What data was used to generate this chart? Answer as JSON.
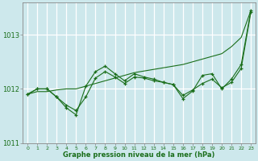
{
  "background_color": "#cde8ec",
  "plot_bg_color": "#cde8ec",
  "grid_color": "#ffffff",
  "line_color": "#1a6e1a",
  "x_values": [
    0,
    1,
    2,
    3,
    4,
    5,
    6,
    7,
    8,
    9,
    10,
    11,
    12,
    13,
    14,
    15,
    16,
    17,
    18,
    19,
    20,
    21,
    22,
    23
  ],
  "x_labels": [
    "0",
    "1",
    "2",
    "3",
    "4",
    "5",
    "6",
    "7",
    "8",
    "9",
    "10",
    "11",
    "12",
    "13",
    "14",
    "15",
    "16",
    "17",
    "18",
    "19",
    "20",
    "21",
    "22",
    "23"
  ],
  "zigzag_y": [
    1011.9,
    1012.0,
    1012.0,
    1011.85,
    1011.65,
    1011.52,
    1012.05,
    1012.32,
    1012.42,
    1012.28,
    1012.15,
    1012.28,
    1012.22,
    1012.18,
    1012.12,
    1012.08,
    1011.82,
    1011.96,
    1012.25,
    1012.28,
    1012.0,
    1012.18,
    1012.45,
    1013.45
  ],
  "smooth_y": [
    1011.9,
    1012.0,
    1012.0,
    1011.85,
    1011.7,
    1011.6,
    1011.85,
    1012.2,
    1012.32,
    1012.22,
    1012.1,
    1012.22,
    1012.2,
    1012.15,
    1012.12,
    1012.08,
    1011.88,
    1011.98,
    1012.1,
    1012.18,
    1012.02,
    1012.12,
    1012.38,
    1013.42
  ],
  "trend_y": [
    1011.9,
    1011.95,
    1011.95,
    1011.98,
    1012.0,
    1012.0,
    1012.05,
    1012.1,
    1012.15,
    1012.2,
    1012.25,
    1012.3,
    1012.33,
    1012.36,
    1012.39,
    1012.42,
    1012.45,
    1012.5,
    1012.55,
    1012.6,
    1012.65,
    1012.78,
    1012.95,
    1013.45
  ],
  "ylim_min": 1011.0,
  "ylim_max": 1013.6,
  "ytick_values": [
    1011,
    1012,
    1013
  ],
  "xlabel": "Graphe pression niveau de la mer (hPa)"
}
